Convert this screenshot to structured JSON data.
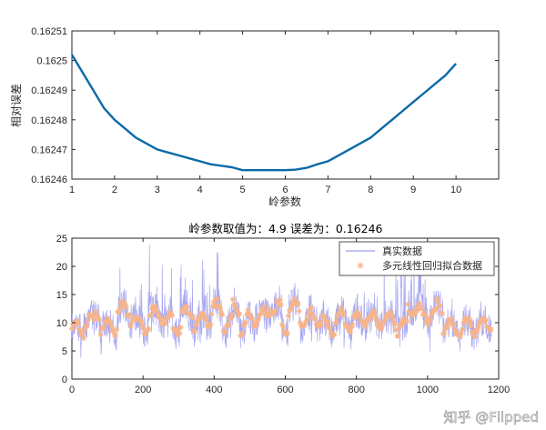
{
  "chart_data": [
    {
      "type": "line",
      "title": "",
      "xlabel": "岭参数",
      "ylabel": "相对误差",
      "xlim": [
        1,
        11
      ],
      "ylim": [
        0.16246,
        0.16251
      ],
      "x_ticks": [
        "1",
        "2",
        "3",
        "4",
        "5",
        "6",
        "7",
        "8",
        "9",
        "10"
      ],
      "y_ticks": [
        "0.16246",
        "0.16247",
        "0.16248",
        "0.16249",
        "0.1625",
        "0.16251"
      ],
      "grid": false,
      "color": "#0b6aa8",
      "series": [
        {
          "x": [
            1,
            1.25,
            1.5,
            1.75,
            2,
            2.25,
            2.5,
            2.75,
            3,
            3.25,
            3.5,
            3.75,
            4,
            4.25,
            4.5,
            4.75,
            5,
            5.25,
            5.5,
            5.75,
            6,
            6.25,
            6.5,
            6.75,
            7,
            7.25,
            7.5,
            7.75,
            8,
            8.25,
            8.5,
            8.75,
            9,
            9.25,
            9.5,
            9.75,
            10
          ],
          "y": [
            0.162502,
            0.162496,
            0.16249,
            0.162484,
            0.16248,
            0.162477,
            0.162474,
            0.162472,
            0.16247,
            0.162469,
            0.162468,
            0.162467,
            0.162466,
            0.162465,
            0.1624645,
            0.162464,
            0.162463,
            0.162463,
            0.162463,
            0.162463,
            0.162463,
            0.1624632,
            0.1624638,
            0.162465,
            0.162466,
            0.162468,
            0.16247,
            0.162472,
            0.162474,
            0.162477,
            0.16248,
            0.162483,
            0.162486,
            0.162489,
            0.162492,
            0.162495,
            0.162499
          ]
        }
      ]
    },
    {
      "type": "line",
      "title": "岭参数取值为：4.9   误差为：0.16246",
      "xlabel": "",
      "ylabel": "",
      "xlim": [
        0,
        1200
      ],
      "ylim": [
        0,
        25
      ],
      "x_ticks": [
        "0",
        "200",
        "400",
        "600",
        "800",
        "1000",
        "1200"
      ],
      "y_ticks": [
        "0",
        "5",
        "10",
        "15",
        "20",
        "25"
      ],
      "grid": false,
      "legend_position": "top-right",
      "series": [
        {
          "name": "真实数据",
          "style": "line",
          "color": "#9f9ff0"
        },
        {
          "name": "多元线性回归拟合数据",
          "style": "asterisk-markers",
          "color": "#f7b48a"
        }
      ]
    }
  ],
  "watermark": "知乎 @Flipped"
}
